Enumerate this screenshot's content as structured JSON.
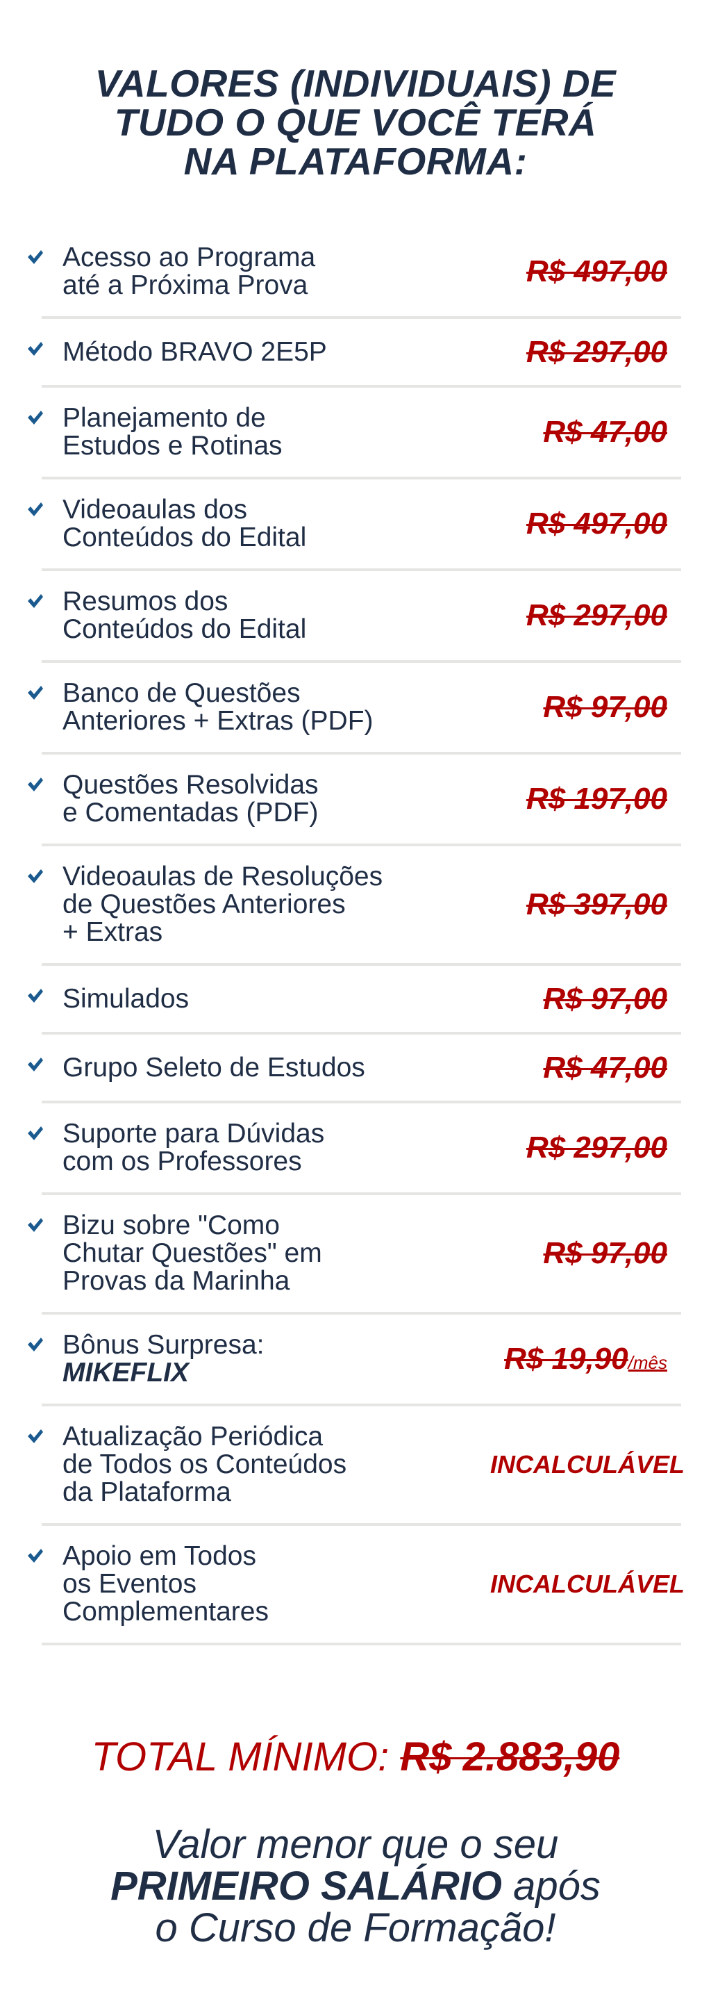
{
  "title": "VALORES (INDIVIDUAIS) DE\nTUDO O QUE VOCÊ TERÁ\nNA PLATAFORMA:",
  "colors": {
    "text": "#1f2d45",
    "price": "#b00000",
    "check": "#1a5a8e",
    "divider": "#e5e5e3"
  },
  "items": [
    {
      "label": "Acesso ao Programa\naté a Próxima Prova",
      "price": "R$ 497,00"
    },
    {
      "label": "Método BRAVO 2E5P",
      "price": "R$ 297,00"
    },
    {
      "label": "Planejamento de\nEstudos e Rotinas",
      "price": "R$ 47,00"
    },
    {
      "label": "Videoaulas dos\nConteúdos do Edital",
      "price": "R$ 497,00"
    },
    {
      "label": "Resumos dos\nConteúdos do Edital",
      "price": "R$ 297,00"
    },
    {
      "label": "Banco de Questões\nAnteriores + Extras (PDF)",
      "price": "R$ 97,00"
    },
    {
      "label": "Questões Resolvidas\ne Comentadas (PDF)",
      "price": "R$ 197,00"
    },
    {
      "label": "Videoaulas de Resoluções\nde Questões Anteriores\n+ Extras",
      "price": "R$ 397,00"
    },
    {
      "label": "Simulados",
      "price": "R$ 97,00"
    },
    {
      "label": "Grupo Seleto de Estudos",
      "price": "R$ 47,00"
    },
    {
      "label": "Suporte para Dúvidas\ncom os Professores",
      "price": "R$ 297,00"
    },
    {
      "label": "Bizu sobre \"Como\nChutar Questões\" em\nProvas da Marinha",
      "price": "R$ 97,00"
    },
    {
      "label": "Bônus Surpresa:",
      "label_bold": "MIKEFLIX",
      "price": "R$ 19,90",
      "price_suffix": "/mês"
    },
    {
      "label": "Atualização Periódica\nde Todos os Conteúdos\nda Plataforma",
      "price": "INCALCULÁVEL"
    },
    {
      "label": "Apoio em Todos\nos Eventos\nComplementares",
      "price": "INCALCULÁVEL"
    }
  ],
  "total": {
    "label": "TOTAL MÍNIMO: ",
    "amount": "R$ 2.883,90"
  },
  "tagline": {
    "line1": "Valor menor que o seu",
    "bold": "PRIMEIRO SALÁRIO",
    "after_bold": " após",
    "line3": "o Curso de Formação!"
  }
}
